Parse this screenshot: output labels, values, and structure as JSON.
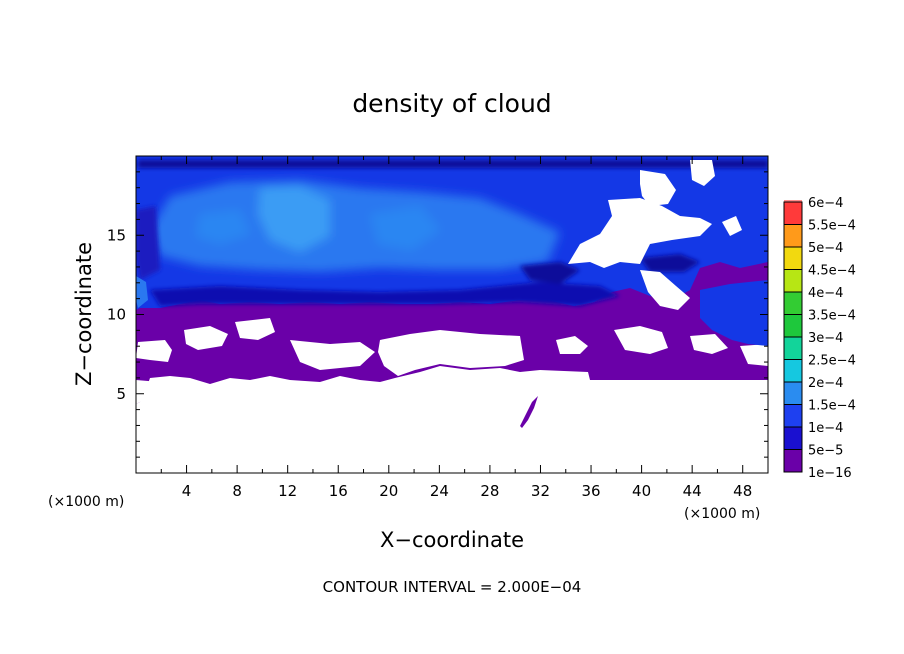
{
  "chart_data": {
    "type": "heatmap",
    "title": "density of cloud",
    "xlabel": "X−coordinate",
    "ylabel": "Z−coordinate",
    "x_unit": "(×1000 m)",
    "y_unit": "(×1000 m)",
    "x_range": [
      0,
      50
    ],
    "y_range": [
      0,
      20
    ],
    "x_ticks": [
      4,
      8,
      12,
      16,
      20,
      24,
      28,
      32,
      36,
      40,
      44,
      48
    ],
    "y_ticks": [
      5,
      10,
      15
    ],
    "colorbar": {
      "labels": [
        "1e−16",
        "5e−5",
        "1e−4",
        "1.5e−4",
        "2e−4",
        "2.5e−4",
        "3e−4",
        "3.5e−4",
        "4e−4",
        "4.5e−4",
        "5e−4",
        "5.5e−4",
        "6e−4"
      ],
      "colors": [
        "#6a00a8",
        "#1a10d0",
        "#1e40f0",
        "#2a8cf0",
        "#15c8e0",
        "#12d49a",
        "#1ec83c",
        "#33cc33",
        "#b7e614",
        "#f2d90f",
        "#ff9a1a",
        "#ff3a3a",
        "#ff8c8c"
      ]
    },
    "field": {
      "empty_color": "#ffffff",
      "low_color": "#6a00a8",
      "background_color": "#1438e6",
      "core_color": "#2a8cf0",
      "dark_color": "#1010b0",
      "dominant_level": "1e−4"
    }
  },
  "contour_interval": "CONTOUR INTERVAL = 2.000E−04"
}
